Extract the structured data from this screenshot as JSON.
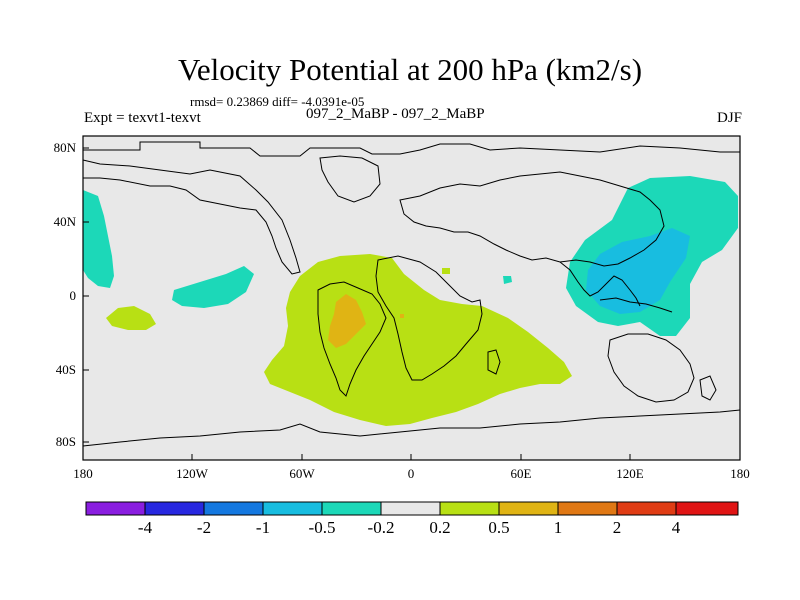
{
  "title": "Velocity Potential at 200 hPa (km2/s)",
  "stats": "rmsd= 0.23869 diff= -4.0391e-05",
  "expt": "Expt = texvt1-texvt",
  "expt_name": "097_2_MaBP - 097_2_MaBP",
  "season": "DJF",
  "lat_labels": [
    "80N",
    "40N",
    "0",
    "40S",
    "80S"
  ],
  "lon_labels": [
    "180",
    "120W",
    "60W",
    "0",
    "60E",
    "120E",
    "180"
  ],
  "colorbar": {
    "labels": [
      "-4",
      "-2",
      "-1",
      "-0.5",
      "-0.2",
      "0.2",
      "0.5",
      "1",
      "2",
      "4"
    ],
    "colors": [
      "#8a1ee0",
      "#2828e0",
      "#1478e0",
      "#18bde0",
      "#1cd8b8",
      "#e8e8e8",
      "#b8e014",
      "#e0b414",
      "#e07814",
      "#e03c14",
      "#e01414"
    ]
  },
  "colors": {
    "background_field": "#e8e8e8",
    "positive_weak": "#b8e014",
    "positive_mid": "#e0b414",
    "negative_weak": "#1cd8b8",
    "negative_mid": "#18bde0"
  }
}
